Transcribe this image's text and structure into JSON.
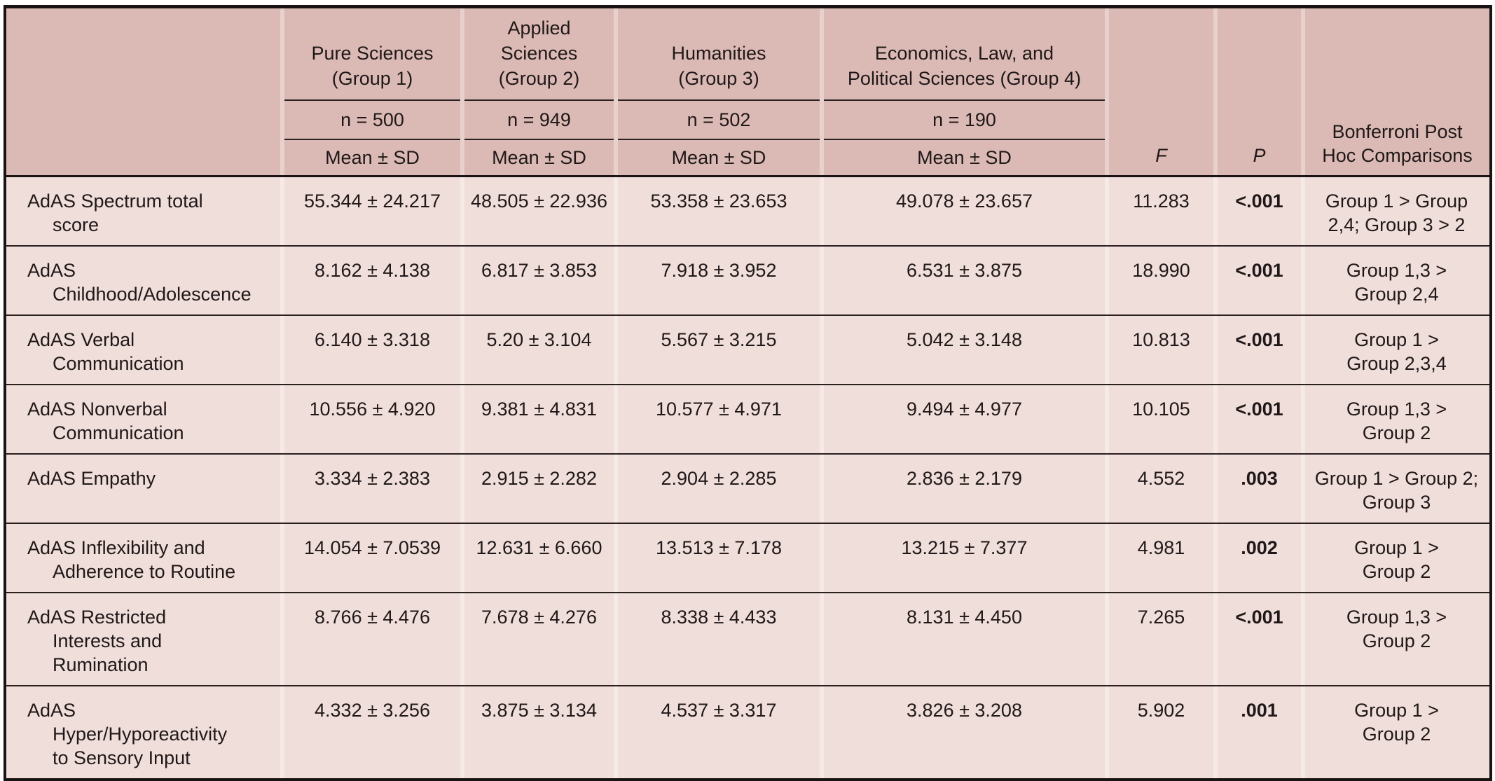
{
  "table": {
    "header": {
      "groups": [
        {
          "name": [
            "Pure Sciences",
            "(Group 1)"
          ],
          "n": "n = 500",
          "stat": "Mean ± SD"
        },
        {
          "name": [
            "Applied",
            "Sciences",
            "(Group 2)"
          ],
          "n": "n = 949",
          "stat": "Mean ± SD"
        },
        {
          "name": [
            "Humanities",
            "(Group 3)"
          ],
          "n": "n = 502",
          "stat": "Mean ± SD"
        },
        {
          "name": [
            "Economics, Law, and",
            "Political Sciences (Group 4)"
          ],
          "n": "n = 190",
          "stat": "Mean ± SD"
        }
      ],
      "f_label": "F",
      "p_label": "P",
      "posthoc_label": [
        "Bonferroni Post",
        "Hoc Comparisons"
      ]
    },
    "rows": [
      {
        "label": "AdAS Spectrum total score",
        "means": [
          "55.344 ± 24.217",
          "48.505 ± 22.936",
          "53.358 ± 23.653",
          "49.078 ± 23.657"
        ],
        "f": "11.283",
        "p": "<.001",
        "posthoc": [
          "Group 1 > Group",
          "2,4; Group 3 > 2"
        ]
      },
      {
        "label": "AdAS Childhood/Adolescence",
        "means": [
          "8.162 ± 4.138",
          "6.817 ± 3.853",
          "7.918 ± 3.952",
          "6.531 ± 3.875"
        ],
        "f": "18.990",
        "p": "<.001",
        "posthoc": [
          "Group 1,3 >",
          "Group 2,4"
        ]
      },
      {
        "label": "AdAS Verbal Communication",
        "means": [
          "6.140 ± 3.318",
          "5.20 ± 3.104",
          "5.567 ± 3.215",
          "5.042 ± 3.148"
        ],
        "f": "10.813",
        "p": "<.001",
        "posthoc": [
          "Group 1 >",
          "Group 2,3,4"
        ]
      },
      {
        "label": "AdAS Nonverbal Communication",
        "means": [
          "10.556 ± 4.920",
          "9.381 ± 4.831",
          "10.577 ± 4.971",
          "9.494 ± 4.977"
        ],
        "f": "10.105",
        "p": "<.001",
        "posthoc": [
          "Group 1,3 >",
          "Group 2"
        ]
      },
      {
        "label": "AdAS Empathy",
        "means": [
          "3.334 ± 2.383",
          "2.915 ± 2.282",
          "2.904 ± 2.285",
          "2.836 ± 2.179"
        ],
        "f": "4.552",
        "p": ".003",
        "posthoc": [
          "Group 1 > Group 2;",
          "Group 3"
        ]
      },
      {
        "label": "AdAS Inflexibility and Adherence to Routine",
        "means": [
          "14.054 ± 7.0539",
          "12.631 ± 6.660",
          "13.513 ± 7.178",
          "13.215 ± 7.377"
        ],
        "f": "4.981",
        "p": ".002",
        "posthoc": [
          "Group 1 >",
          "Group 2"
        ]
      },
      {
        "label": "AdAS Restricted Interests and Rumination",
        "means": [
          "8.766 ± 4.476",
          "7.678 ± 4.276",
          "8.338 ± 4.433",
          "8.131 ± 4.450"
        ],
        "f": "7.265",
        "p": "<.001",
        "posthoc": [
          "Group 1,3 >",
          "Group 2"
        ]
      },
      {
        "label": "AdAS Hyper/Hyporeactivity to Sensory Input",
        "means": [
          "4.332 ± 3.256",
          "3.875 ± 3.134",
          "4.537 ± 3.317",
          "3.826 ± 3.208"
        ],
        "f": "5.902",
        "p": ".001",
        "posthoc": [
          "Group 1 >",
          "Group 2"
        ]
      }
    ]
  },
  "colors": {
    "header_bg": "#dbbab5",
    "header_gap": "#e8d0cc",
    "body_bg": "#efdeda",
    "body_gap": "#f6eae6",
    "rule_dark": "#1b1313",
    "rule_thin": "#2a2020",
    "text": "#201818"
  }
}
